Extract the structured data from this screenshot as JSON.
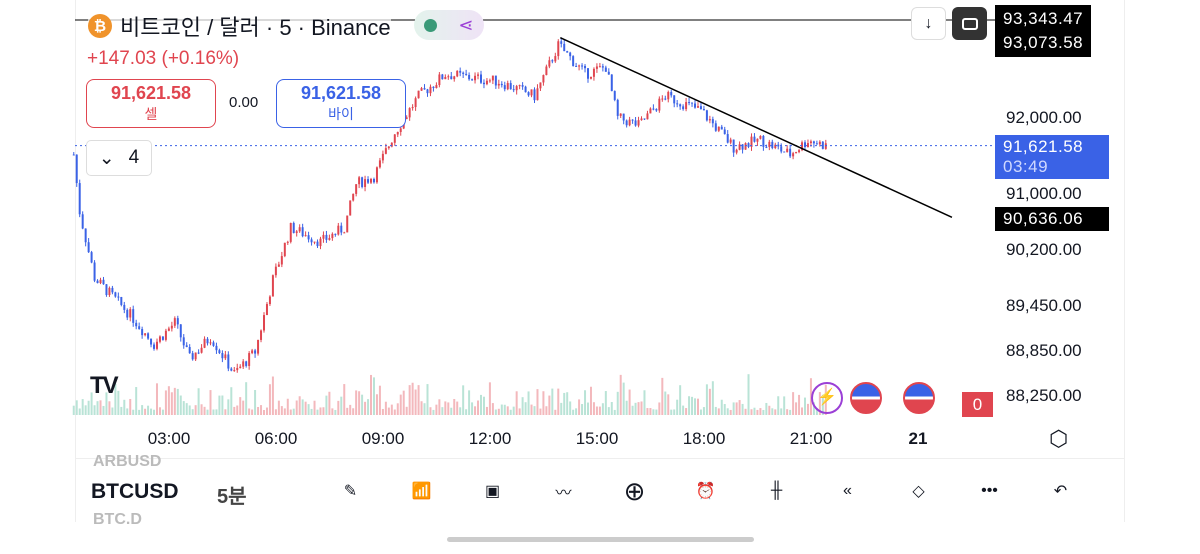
{
  "header": {
    "symbol_title": "비트코인 / 달러 · 5 · Binance",
    "change": "+147.03 (+0.16%)",
    "indicator_count": "4"
  },
  "trade": {
    "sell_price": "91,621.58",
    "sell_label": "셀",
    "spread": "0.00",
    "buy_price": "91,621.58",
    "buy_label": "바이"
  },
  "price_labels": {
    "high1": "93,343.47",
    "high2": "93,073.58",
    "current": "91,621.58",
    "countdown": "03:49",
    "line_level": "90,636.06"
  },
  "price_axis": [
    "92,000.00",
    "91,000.00",
    "90,200.00",
    "89,450.00",
    "88,850.00",
    "88,250.00"
  ],
  "time_axis": [
    "03:00",
    "06:00",
    "09:00",
    "12:00",
    "15:00",
    "18:00",
    "21:00",
    "21"
  ],
  "alert_badge": "0",
  "bottom": {
    "ghost_above": "ARBUSD",
    "symbol": "BTCUSD",
    "interval": "5분",
    "ghost_below": "BTC.D"
  },
  "colors": {
    "up": "#e0454f",
    "down": "#3a62e6"
  },
  "chart_data": {
    "type": "candlestick",
    "interval_minutes": 5,
    "path_hours_prices": [
      [
        0.33,
        91500
      ],
      [
        0.5,
        90700
      ],
      [
        0.92,
        89800
      ],
      [
        1.33,
        89600
      ],
      [
        1.92,
        89300
      ],
      [
        2.58,
        88900
      ],
      [
        3.17,
        89200
      ],
      [
        3.58,
        88700
      ],
      [
        4.17,
        89000
      ],
      [
        4.83,
        88500
      ],
      [
        5.42,
        88800
      ],
      [
        5.92,
        89800
      ],
      [
        6.42,
        90500
      ],
      [
        7.25,
        90300
      ],
      [
        7.92,
        90500
      ],
      [
        8.25,
        91100
      ],
      [
        8.75,
        91200
      ],
      [
        9.33,
        91800
      ],
      [
        10,
        92300
      ],
      [
        10.75,
        92600
      ],
      [
        12.25,
        92500
      ],
      [
        13.25,
        92300
      ],
      [
        13.92,
        93000
      ],
      [
        14.67,
        92600
      ],
      [
        15.25,
        92700
      ],
      [
        15.58,
        92000
      ],
      [
        16.17,
        91900
      ],
      [
        16.92,
        92300
      ],
      [
        17.92,
        92100
      ],
      [
        18.83,
        91600
      ],
      [
        19.58,
        91700
      ],
      [
        20.42,
        91500
      ],
      [
        20.92,
        91700
      ],
      [
        21.42,
        91620
      ]
    ],
    "trendline": [
      [
        13.97,
        93100
      ],
      [
        24.95,
        90640
      ]
    ],
    "current_price": 91621.58
  }
}
